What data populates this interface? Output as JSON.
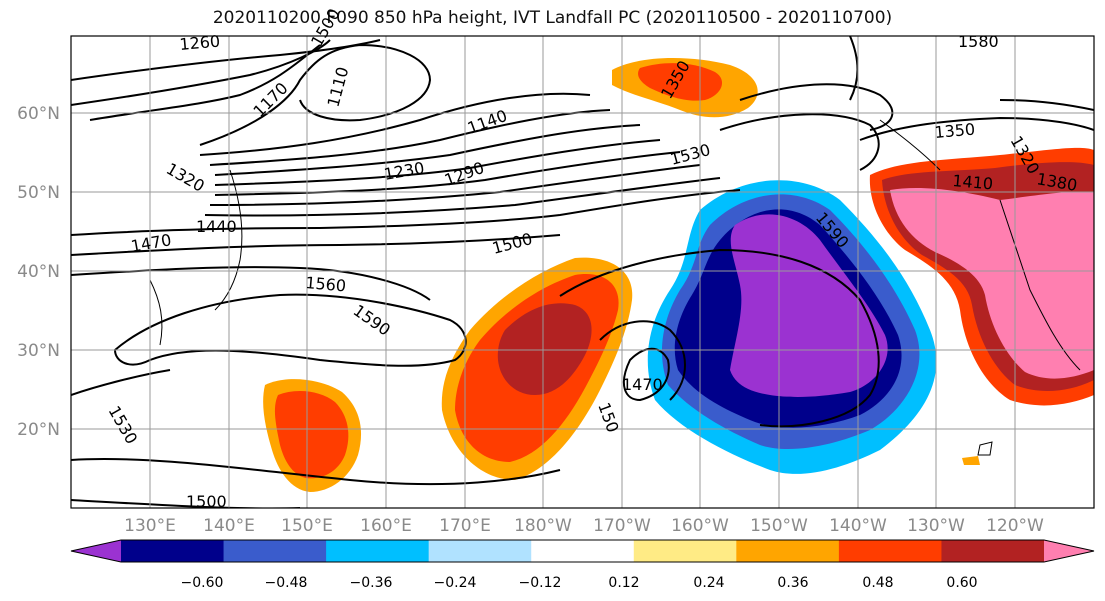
{
  "title": "2020110200 F090 850 hPa height, IVT Landfall PC (2020110500 - 2020110700)",
  "lat_labels": [
    "60°N",
    "50°N",
    "40°N",
    "30°N",
    "20°N"
  ],
  "lon_labels": [
    "130°E",
    "140°E",
    "150°E",
    "160°E",
    "170°E",
    "180°W",
    "170°W",
    "160°W",
    "150°W",
    "140°W",
    "130°W",
    "120°W"
  ],
  "colorbar": {
    "tick_labels": [
      "−0.60",
      "−0.48",
      "−0.36",
      "−0.24",
      "−0.12",
      "0.12",
      "0.24",
      "0.36",
      "0.48",
      "0.60"
    ],
    "colors": [
      "#9b32d1",
      "#00008b",
      "#3a5ccc",
      "#00bfff",
      "#b0e2ff",
      "#ffffff",
      "#ffeb85",
      "#ffa500",
      "#ff3d00",
      "#b22222",
      "#ff7fb0"
    ]
  },
  "contour_labels": [
    "1260",
    "1170",
    "1110",
    "1140",
    "1230",
    "1290",
    "1320",
    "1440",
    "1470",
    "1500",
    "1560",
    "1590",
    "1530",
    "1350",
    "1380",
    "1410",
    "1470",
    "1500",
    "1590",
    "1350",
    "1530",
    "1500",
    "1580",
    "150",
    "1320"
  ]
}
